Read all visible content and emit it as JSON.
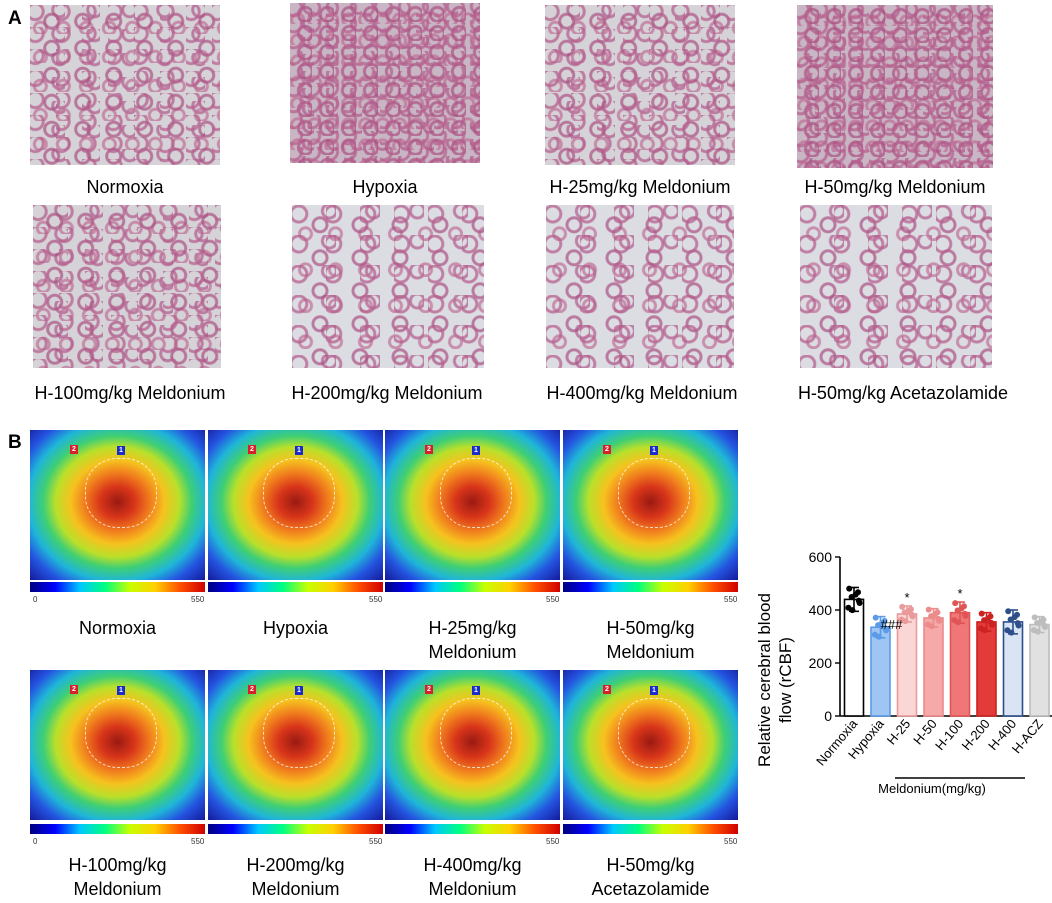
{
  "panelA": {
    "letter": "A",
    "labels": [
      "Normoxia",
      "Hypoxia",
      "H-25mg/kg Meldonium",
      "H-50mg/kg Meldonium",
      "H-100mg/kg Meldonium",
      "H-200mg/kg Meldonium",
      "H-400mg/kg Meldonium",
      "H-50mg/kg Acetazolamide"
    ]
  },
  "panelB": {
    "letter": "B",
    "roi_labels": [
      "1",
      "2"
    ],
    "colorbar_min": "0",
    "colorbar_max": "550",
    "labels": [
      [
        "Normoxia"
      ],
      [
        "Hypoxia"
      ],
      [
        "H-25mg/kg",
        "Meldonium"
      ],
      [
        "H-50mg/kg",
        "Meldonium"
      ],
      [
        "H-100mg/kg",
        "Meldonium"
      ],
      [
        "H-200mg/kg",
        "Meldonium"
      ],
      [
        "H-400mg/kg",
        "Meldonium"
      ],
      [
        "H-50mg/kg",
        "Acetazolamide"
      ]
    ]
  },
  "chart_data": {
    "type": "bar",
    "ylabel_line1": "Relative cerebral blood",
    "ylabel_line2": "flow (rCBF)",
    "ylim": [
      0,
      600
    ],
    "yticks": [
      "0",
      "200",
      "400",
      "600"
    ],
    "categories": [
      "Normoxia",
      "Hypoxia",
      "H-25",
      "H-50",
      "H-100",
      "H-200",
      "H-400",
      "H-ACZ"
    ],
    "values": [
      440,
      335,
      385,
      370,
      390,
      355,
      355,
      345
    ],
    "errors": [
      45,
      40,
      30,
      35,
      40,
      35,
      45,
      30
    ],
    "annotations": [
      "",
      "###",
      "*",
      "",
      "*",
      "",
      "",
      ""
    ],
    "group_label": "Meldonium(mg/kg)",
    "colors": {
      "fill": [
        "#ffffff",
        "#9fc5f3",
        "#fbd6d6",
        "#f6a9a9",
        "#ef7777",
        "#e33a3a",
        "#d9e4f5",
        "#e1e1e1"
      ],
      "edge": [
        "#000000",
        "#5b9be8",
        "#e99a9a",
        "#ec8b8b",
        "#e05555",
        "#cc2222",
        "#2d4f8a",
        "#bdbdbd"
      ]
    }
  }
}
